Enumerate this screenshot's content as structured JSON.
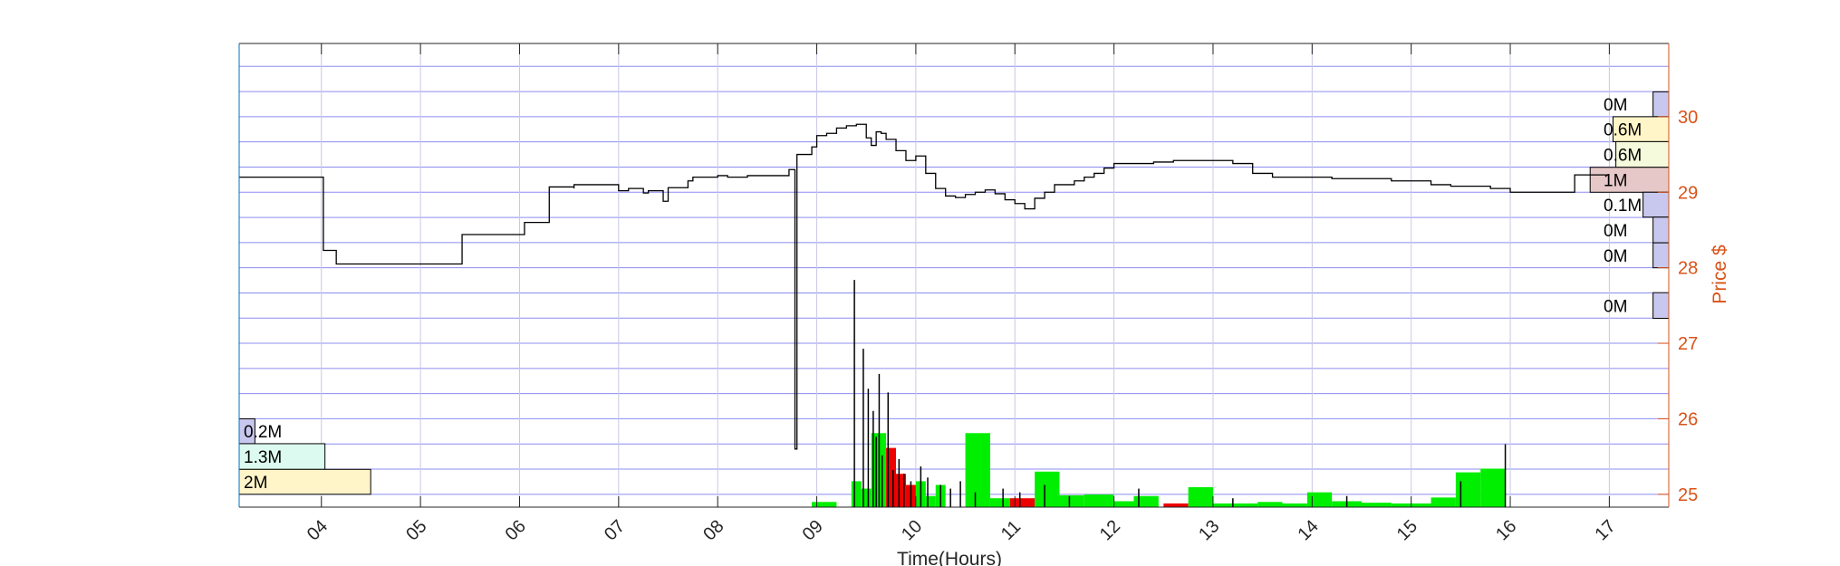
{
  "chart_data": {
    "type": "line",
    "xlabel": "Time(Hours)",
    "ylabel": "Price $",
    "xlim": [
      3.17,
      17.6
    ],
    "ylim": [
      24.83,
      30.97
    ],
    "x_ticks": [
      "04",
      "05",
      "06",
      "07",
      "08",
      "09",
      "10",
      "11",
      "12",
      "13",
      "14",
      "15",
      "16",
      "17"
    ],
    "y_ticks": [
      25,
      26,
      27,
      28,
      29,
      30
    ],
    "grid": true,
    "colors": {
      "price_line": "#000000",
      "up_volume": "#00EE00",
      "down_volume": "#EE0000",
      "right_axis": "#D95319",
      "left_axis": "#0072BD",
      "grid_horizontal": "#6666EE",
      "grid_vertical": "#C8C8E6"
    },
    "price_series": {
      "name": "Price",
      "x": [
        3.17,
        4.0,
        4.02,
        4.15,
        4.15,
        5.4,
        5.42,
        6.05,
        6.05,
        6.25,
        6.3,
        6.55,
        6.55,
        7.0,
        7.1,
        7.25,
        7.3,
        7.45,
        7.5,
        7.7,
        7.75,
        8.0,
        8.1,
        8.3,
        8.4,
        8.7,
        8.72,
        8.78,
        8.8,
        8.95,
        9.0,
        9.1,
        9.2,
        9.3,
        9.4,
        9.5,
        9.55,
        9.6,
        9.65,
        9.7,
        9.8,
        9.9,
        10.0,
        10.1,
        10.2,
        10.3,
        10.4,
        10.5,
        10.6,
        10.7,
        10.8,
        10.9,
        11.0,
        11.1,
        11.2,
        11.3,
        11.4,
        11.5,
        11.6,
        11.7,
        11.8,
        11.9,
        12.0,
        12.2,
        12.4,
        12.6,
        12.8,
        13.0,
        13.2,
        13.4,
        13.6,
        13.8,
        14.0,
        14.2,
        14.4,
        14.6,
        14.8,
        15.0,
        15.2,
        15.4,
        15.6,
        15.8,
        15.95,
        16.0,
        16.1,
        16.6,
        16.65,
        16.8,
        17.0
      ],
      "y": [
        29.2,
        29.2,
        28.23,
        28.21,
        28.05,
        28.05,
        28.44,
        28.44,
        28.6,
        28.6,
        29.07,
        29.05,
        29.1,
        29.02,
        29.05,
        28.99,
        29.02,
        28.88,
        29.06,
        29.15,
        29.2,
        29.22,
        29.2,
        29.22,
        29.22,
        29.22,
        29.3,
        25.6,
        29.5,
        29.6,
        29.75,
        29.78,
        29.85,
        29.88,
        29.9,
        29.72,
        29.62,
        29.8,
        29.78,
        29.7,
        29.55,
        29.42,
        29.48,
        29.25,
        29.05,
        28.95,
        28.93,
        28.97,
        29.0,
        29.03,
        28.98,
        28.9,
        28.85,
        28.78,
        28.92,
        29.0,
        29.1,
        29.1,
        29.15,
        29.2,
        29.25,
        29.32,
        29.38,
        29.38,
        29.4,
        29.42,
        29.42,
        29.42,
        29.38,
        29.25,
        29.2,
        29.2,
        29.2,
        29.18,
        29.18,
        29.18,
        29.15,
        29.15,
        29.1,
        29.08,
        29.08,
        29.05,
        29.05,
        29.0,
        29.0,
        29.0,
        29.23,
        29.23,
        29.23
      ]
    },
    "volume_bars": [
      {
        "x0": 8.95,
        "x1": 9.2,
        "value": 0.07,
        "dir": "up"
      },
      {
        "x0": 9.35,
        "x1": 9.45,
        "value": 0.35,
        "dir": "up"
      },
      {
        "x0": 9.45,
        "x1": 9.55,
        "value": 0.25,
        "dir": "up"
      },
      {
        "x0": 9.55,
        "x1": 9.7,
        "value": 1.0,
        "dir": "up"
      },
      {
        "x0": 9.7,
        "x1": 9.8,
        "value": 0.8,
        "dir": "down"
      },
      {
        "x0": 9.8,
        "x1": 9.9,
        "value": 0.45,
        "dir": "down"
      },
      {
        "x0": 9.9,
        "x1": 10.0,
        "value": 0.3,
        "dir": "down"
      },
      {
        "x0": 10.0,
        "x1": 10.1,
        "value": 0.35,
        "dir": "up"
      },
      {
        "x0": 10.1,
        "x1": 10.2,
        "value": 0.15,
        "dir": "up"
      },
      {
        "x0": 10.2,
        "x1": 10.3,
        "value": 0.3,
        "dir": "up"
      },
      {
        "x0": 10.5,
        "x1": 10.75,
        "value": 1.0,
        "dir": "up"
      },
      {
        "x0": 10.75,
        "x1": 10.95,
        "value": 0.12,
        "dir": "up"
      },
      {
        "x0": 10.95,
        "x1": 11.2,
        "value": 0.12,
        "dir": "down"
      },
      {
        "x0": 11.2,
        "x1": 11.45,
        "value": 0.48,
        "dir": "up"
      },
      {
        "x0": 11.45,
        "x1": 11.7,
        "value": 0.16,
        "dir": "up"
      },
      {
        "x0": 11.7,
        "x1": 12.0,
        "value": 0.17,
        "dir": "up"
      },
      {
        "x0": 12.0,
        "x1": 12.2,
        "value": 0.08,
        "dir": "up"
      },
      {
        "x0": 12.2,
        "x1": 12.45,
        "value": 0.15,
        "dir": "up"
      },
      {
        "x0": 12.5,
        "x1": 12.75,
        "value": 0.05,
        "dir": "down"
      },
      {
        "x0": 12.75,
        "x1": 13.0,
        "value": 0.27,
        "dir": "up"
      },
      {
        "x0": 13.0,
        "x1": 13.45,
        "value": 0.05,
        "dir": "up"
      },
      {
        "x0": 13.45,
        "x1": 13.7,
        "value": 0.07,
        "dir": "up"
      },
      {
        "x0": 13.7,
        "x1": 13.95,
        "value": 0.05,
        "dir": "up"
      },
      {
        "x0": 13.95,
        "x1": 14.2,
        "value": 0.2,
        "dir": "up"
      },
      {
        "x0": 14.2,
        "x1": 14.5,
        "value": 0.08,
        "dir": "up"
      },
      {
        "x0": 14.5,
        "x1": 14.8,
        "value": 0.06,
        "dir": "up"
      },
      {
        "x0": 14.8,
        "x1": 15.2,
        "value": 0.05,
        "dir": "up"
      },
      {
        "x0": 15.2,
        "x1": 15.45,
        "value": 0.13,
        "dir": "up"
      },
      {
        "x0": 15.45,
        "x1": 15.7,
        "value": 0.47,
        "dir": "up"
      },
      {
        "x0": 15.7,
        "x1": 15.95,
        "value": 0.52,
        "dir": "up"
      }
    ],
    "trade_spikes": {
      "x": [
        9.38,
        9.47,
        9.52,
        9.57,
        9.6,
        9.63,
        9.66,
        9.72,
        9.77,
        9.83,
        9.88,
        9.95,
        10.05,
        10.12,
        10.25,
        10.35,
        10.45,
        10.6,
        10.88,
        11.05,
        11.3,
        11.55,
        12.25,
        13.2,
        14.35,
        15.5,
        15.95
      ],
      "value": [
        3.07,
        2.14,
        1.6,
        1.3,
        0.95,
        1.8,
        0.7,
        1.55,
        0.5,
        0.65,
        0.45,
        0.35,
        0.55,
        0.4,
        0.3,
        0.25,
        0.35,
        0.2,
        0.25,
        0.2,
        0.3,
        0.15,
        0.25,
        0.12,
        0.15,
        0.35,
        0.85
      ]
    },
    "volume_profile_right": [
      {
        "label": "0M",
        "price_lo": 30.0,
        "price_hi": 30.33,
        "frac": 0.011,
        "color": "#C8C8EE"
      },
      {
        "label": "0.6M",
        "price_lo": 29.67,
        "price_hi": 30.0,
        "frac": 0.039,
        "color": "#FFF5C8"
      },
      {
        "label": "0.6M",
        "price_lo": 29.33,
        "price_hi": 29.67,
        "frac": 0.037,
        "color": "#F5FADC"
      },
      {
        "label": "1M",
        "price_lo": 29.0,
        "price_hi": 29.33,
        "frac": 0.055,
        "color": "#E6C8C8"
      },
      {
        "label": "0.1M",
        "price_lo": 28.67,
        "price_hi": 29.0,
        "frac": 0.018,
        "color": "#C8C8EE"
      },
      {
        "label": "0M",
        "price_lo": 28.33,
        "price_hi": 28.67,
        "frac": 0.011,
        "color": "#C8C8EE"
      },
      {
        "label": "0M",
        "price_lo": 28.0,
        "price_hi": 28.33,
        "frac": 0.011,
        "color": "#C8C8EE"
      },
      {
        "label": "0M",
        "price_lo": 27.33,
        "price_hi": 27.67,
        "frac": 0.011,
        "color": "#C8C8EE"
      }
    ],
    "volume_profile_left": [
      {
        "label": "0.2M",
        "price_lo": 25.67,
        "price_hi": 26.0,
        "frac": 0.011,
        "color": "#C8C8EE"
      },
      {
        "label": "1.3M",
        "price_lo": 25.33,
        "price_hi": 25.67,
        "frac": 0.06,
        "color": "#DCFAF0"
      },
      {
        "label": "2M",
        "price_lo": 25.0,
        "price_hi": 25.33,
        "frac": 0.092,
        "color": "#FFF5C8"
      }
    ]
  }
}
